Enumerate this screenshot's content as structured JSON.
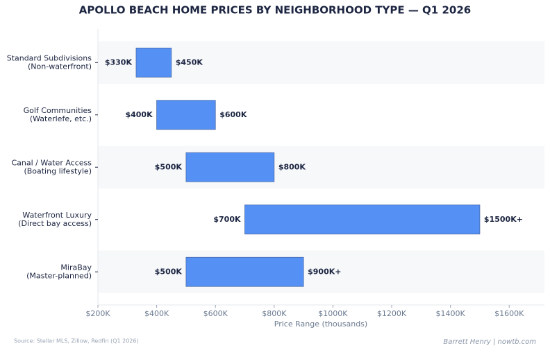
{
  "chart_data": {
    "type": "bar",
    "orientation": "horizontal",
    "title": "APOLLO BEACH HOME PRICES BY NEIGHBORHOOD TYPE — Q1 2026",
    "categories": [
      [
        "Standard Subdivisions",
        "(Non-waterfront)"
      ],
      [
        "Golf Communities",
        "(Waterlefe, etc.)"
      ],
      [
        "Canal / Water Access",
        "(Boating lifestyle)"
      ],
      [
        "Waterfront Luxury",
        "(Direct bay access)"
      ],
      [
        "MiraBay",
        "(Master-planned)"
      ]
    ],
    "low": {
      "values": [
        330,
        400,
        500,
        700,
        500
      ],
      "value_labels": [
        "$330K",
        "$400K",
        "$500K",
        "$700K",
        "$500K"
      ]
    },
    "high": {
      "values": [
        450,
        600,
        800,
        1500,
        900
      ],
      "value_labels": [
        "$450K",
        "$600K",
        "$800K",
        "$1500K+",
        "$900K+"
      ]
    },
    "color": "#5591f5",
    "xlabel": "Price Range (thousands)",
    "xlim": [
      200,
      1720
    ],
    "xticks": [
      {
        "value": 200,
        "label": "$200K"
      },
      {
        "value": 400,
        "label": "$400K"
      },
      {
        "value": 600,
        "label": "$600K"
      },
      {
        "value": 800,
        "label": "$800K"
      },
      {
        "value": 1000,
        "label": "$1000K"
      },
      {
        "value": 1200,
        "label": "$1200K"
      },
      {
        "value": 1400,
        "label": "$1400K"
      },
      {
        "value": 1600,
        "label": "$1600K"
      }
    ],
    "source": "Source: Stellar MLS, Zillow, Redfin (Q1 2026)",
    "credit": "Barrett Henry | nowtb.com"
  }
}
